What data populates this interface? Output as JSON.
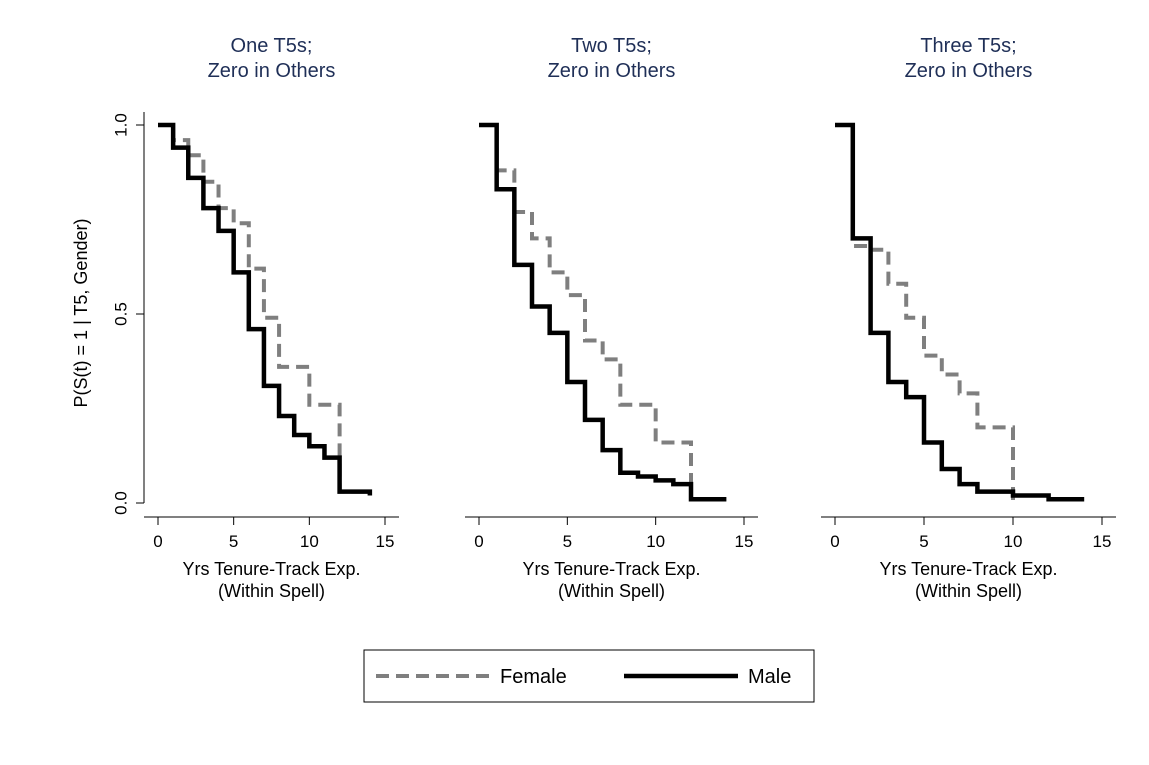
{
  "legend": {
    "position": "bottom-center",
    "items": [
      {
        "label": "Female",
        "color": "#7f7f7f",
        "style": "dashed"
      },
      {
        "label": "Male",
        "color": "#000000",
        "style": "solid"
      }
    ]
  },
  "y_axis": {
    "label": "P(S(t) = 1 | T5, Gender)",
    "ticks": [
      0,
      0.5,
      1
    ],
    "tick_labels": [
      "0.0",
      "0.5",
      "1.0"
    ]
  },
  "chart_data": [
    {
      "type": "line",
      "step": true,
      "title": [
        "One T5s;",
        "Zero in Others"
      ],
      "xlabel": [
        "Yrs Tenure-Track Exp.",
        "(Within Spell)"
      ],
      "ylabel": "P(S(t) = 1 | T5, Gender)",
      "xlim": [
        0,
        15
      ],
      "ylim": [
        0,
        1
      ],
      "xticks": [
        0,
        5,
        10,
        15
      ],
      "grid": false,
      "series": [
        {
          "name": "Female",
          "x": [
            0,
            1,
            2,
            3,
            4,
            5,
            6,
            7,
            8,
            9,
            10,
            11,
            12,
            13,
            14
          ],
          "y": [
            1.0,
            0.96,
            0.92,
            0.85,
            0.78,
            0.74,
            0.62,
            0.49,
            0.36,
            0.36,
            0.26,
            0.26,
            0.03,
            0.03,
            0.02
          ]
        },
        {
          "name": "Male",
          "x": [
            0,
            1,
            2,
            3,
            4,
            5,
            6,
            7,
            8,
            9,
            10,
            11,
            12,
            13,
            14
          ],
          "y": [
            1.0,
            0.94,
            0.86,
            0.78,
            0.72,
            0.61,
            0.46,
            0.31,
            0.23,
            0.18,
            0.15,
            0.12,
            0.03,
            0.03,
            0.02
          ]
        }
      ]
    },
    {
      "type": "line",
      "step": true,
      "title": [
        "Two T5s;",
        "Zero in Others"
      ],
      "xlabel": [
        "Yrs Tenure-Track Exp.",
        "(Within Spell)"
      ],
      "xlim": [
        0,
        15
      ],
      "ylim": [
        0,
        1
      ],
      "xticks": [
        0,
        5,
        10,
        15
      ],
      "grid": false,
      "series": [
        {
          "name": "Female",
          "x": [
            0,
            1,
            2,
            3,
            4,
            5,
            6,
            7,
            8,
            9,
            10,
            11,
            12,
            13,
            14
          ],
          "y": [
            1.0,
            0.88,
            0.77,
            0.7,
            0.61,
            0.55,
            0.43,
            0.38,
            0.26,
            0.26,
            0.16,
            0.16,
            0.01,
            0.01,
            0.01
          ]
        },
        {
          "name": "Male",
          "x": [
            0,
            1,
            2,
            3,
            4,
            5,
            6,
            7,
            8,
            9,
            10,
            11,
            12,
            13,
            14
          ],
          "y": [
            1.0,
            0.83,
            0.63,
            0.52,
            0.45,
            0.32,
            0.22,
            0.14,
            0.08,
            0.07,
            0.06,
            0.05,
            0.01,
            0.01,
            0.01
          ]
        }
      ]
    },
    {
      "type": "line",
      "step": true,
      "title": [
        "Three T5s;",
        "Zero in Others"
      ],
      "xlabel": [
        "Yrs Tenure-Track Exp.",
        "(Within Spell)"
      ],
      "xlim": [
        0,
        15
      ],
      "ylim": [
        0,
        1
      ],
      "xticks": [
        0,
        5,
        10,
        15
      ],
      "grid": false,
      "series": [
        {
          "name": "Female",
          "x": [
            0,
            1,
            2,
            3,
            4,
            5,
            6,
            7,
            8,
            9,
            10
          ],
          "y": [
            1.0,
            0.68,
            0.67,
            0.58,
            0.49,
            0.39,
            0.34,
            0.29,
            0.2,
            0.2,
            0.0
          ]
        },
        {
          "name": "Male",
          "x": [
            0,
            1,
            2,
            3,
            4,
            5,
            6,
            7,
            8,
            9,
            10,
            11,
            12,
            13,
            14
          ],
          "y": [
            1.0,
            0.7,
            0.45,
            0.32,
            0.28,
            0.16,
            0.09,
            0.05,
            0.03,
            0.03,
            0.02,
            0.02,
            0.01,
            0.01,
            0.01
          ]
        }
      ]
    }
  ]
}
